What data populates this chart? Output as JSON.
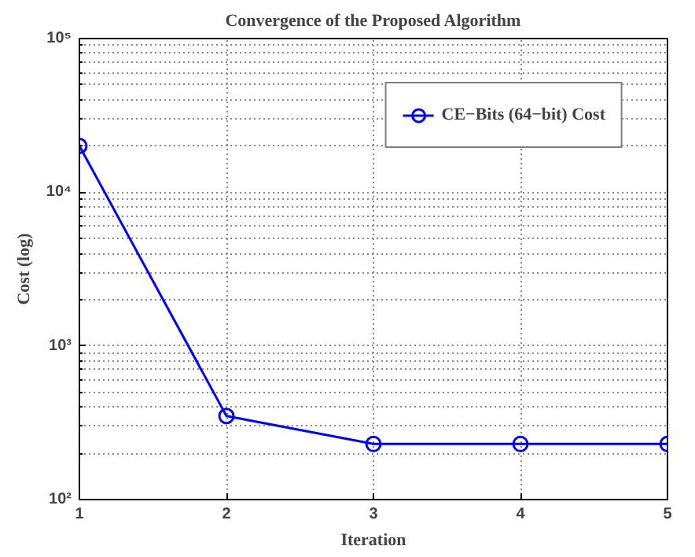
{
  "chart_data": {
    "type": "line",
    "title": "Convergence of the Proposed Algorithm",
    "xlabel": "Iteration",
    "ylabel": "Cost (log)",
    "x": [
      1,
      2,
      3,
      4,
      5
    ],
    "series": [
      {
        "name": "CE−Bits (64−bit) Cost",
        "color": "#0000ff",
        "values": [
          20000,
          350,
          230,
          230,
          230
        ]
      }
    ],
    "xlim": [
      1,
      5
    ],
    "xticks": [
      1,
      2,
      3,
      4,
      5
    ],
    "ylim": [
      100,
      100000
    ],
    "yticks": [
      {
        "value": 100,
        "label": "10²"
      },
      {
        "value": 1000,
        "label": "10³"
      },
      {
        "value": 10000,
        "label": "10⁴"
      },
      {
        "value": 100000,
        "label": "10⁵"
      }
    ],
    "log": true,
    "grid": true,
    "legend": "top right",
    "marker": "circle",
    "line_style": "solid"
  }
}
